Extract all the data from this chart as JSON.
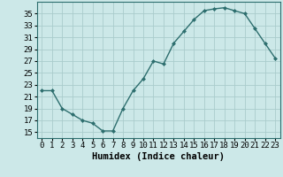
{
  "x": [
    0,
    1,
    2,
    3,
    4,
    5,
    6,
    7,
    8,
    9,
    10,
    11,
    12,
    13,
    14,
    15,
    16,
    17,
    18,
    19,
    20,
    21,
    22,
    23
  ],
  "y": [
    22,
    22,
    19,
    18,
    17,
    16.5,
    15.2,
    15.2,
    19,
    22,
    24,
    27,
    26.5,
    30,
    32,
    34,
    35.5,
    35.8,
    36,
    35.5,
    35,
    32.5,
    30,
    27.5
  ],
  "line_color": "#2d6e6e",
  "marker": "D",
  "bg_color": "#cce8e8",
  "grid_color": "#aacccc",
  "xlabel": "Humidex (Indice chaleur)",
  "xlim": [
    -0.5,
    23.5
  ],
  "ylim": [
    14,
    37
  ],
  "yticks": [
    15,
    17,
    19,
    21,
    23,
    25,
    27,
    29,
    31,
    33,
    35
  ],
  "xticks": [
    0,
    1,
    2,
    3,
    4,
    5,
    6,
    7,
    8,
    9,
    10,
    11,
    12,
    13,
    14,
    15,
    16,
    17,
    18,
    19,
    20,
    21,
    22,
    23
  ],
  "tick_fontsize": 6.5,
  "xlabel_fontsize": 7.5,
  "marker_size": 2.0,
  "line_width": 1.0
}
